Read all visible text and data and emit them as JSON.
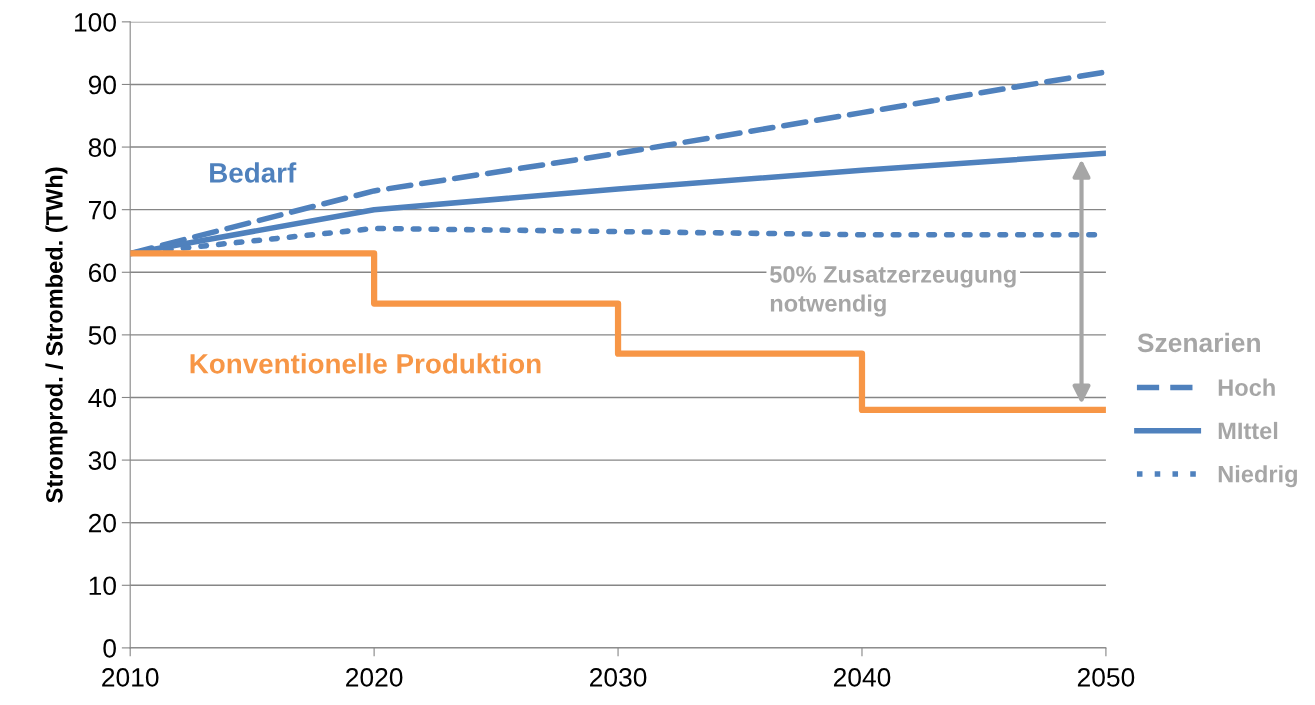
{
  "chart_data": {
    "type": "line",
    "ylabel": "Stromprod. / Strombed. (TWh)",
    "x": [
      2010,
      2020,
      2030,
      2040,
      2050
    ],
    "series": [
      {
        "name": "Hoch",
        "color": "#4f81bd",
        "line_style": "dashed",
        "values": [
          63,
          73,
          79,
          85.5,
          92
        ]
      },
      {
        "name": "MIttel",
        "color": "#4f81bd",
        "line_style": "solid",
        "values": [
          63,
          70,
          73.3,
          76.3,
          79
        ]
      },
      {
        "name": "Niedrig",
        "color": "#4f81bd",
        "line_style": "dotted",
        "values": [
          63,
          67,
          66.5,
          66,
          66
        ]
      },
      {
        "name": "Konventionelle Produktion",
        "type": "step",
        "color": "#f79646",
        "line_style": "solid",
        "values": [
          63,
          55,
          47,
          38,
          38
        ]
      }
    ],
    "legend_title": "Szenarien",
    "legend": "right",
    "annotations": [
      "Bedarf",
      "50% Zusatzerzeugung\nnotwendig"
    ],
    "xlim": [
      2010,
      2050
    ],
    "xticks": [
      2010,
      2020,
      2030,
      2040,
      2050
    ],
    "ylim": [
      0,
      100
    ],
    "yticks": [
      0,
      10,
      20,
      30,
      40,
      50,
      60,
      70,
      80,
      90,
      100
    ],
    "grid": "y",
    "marker": "none"
  }
}
